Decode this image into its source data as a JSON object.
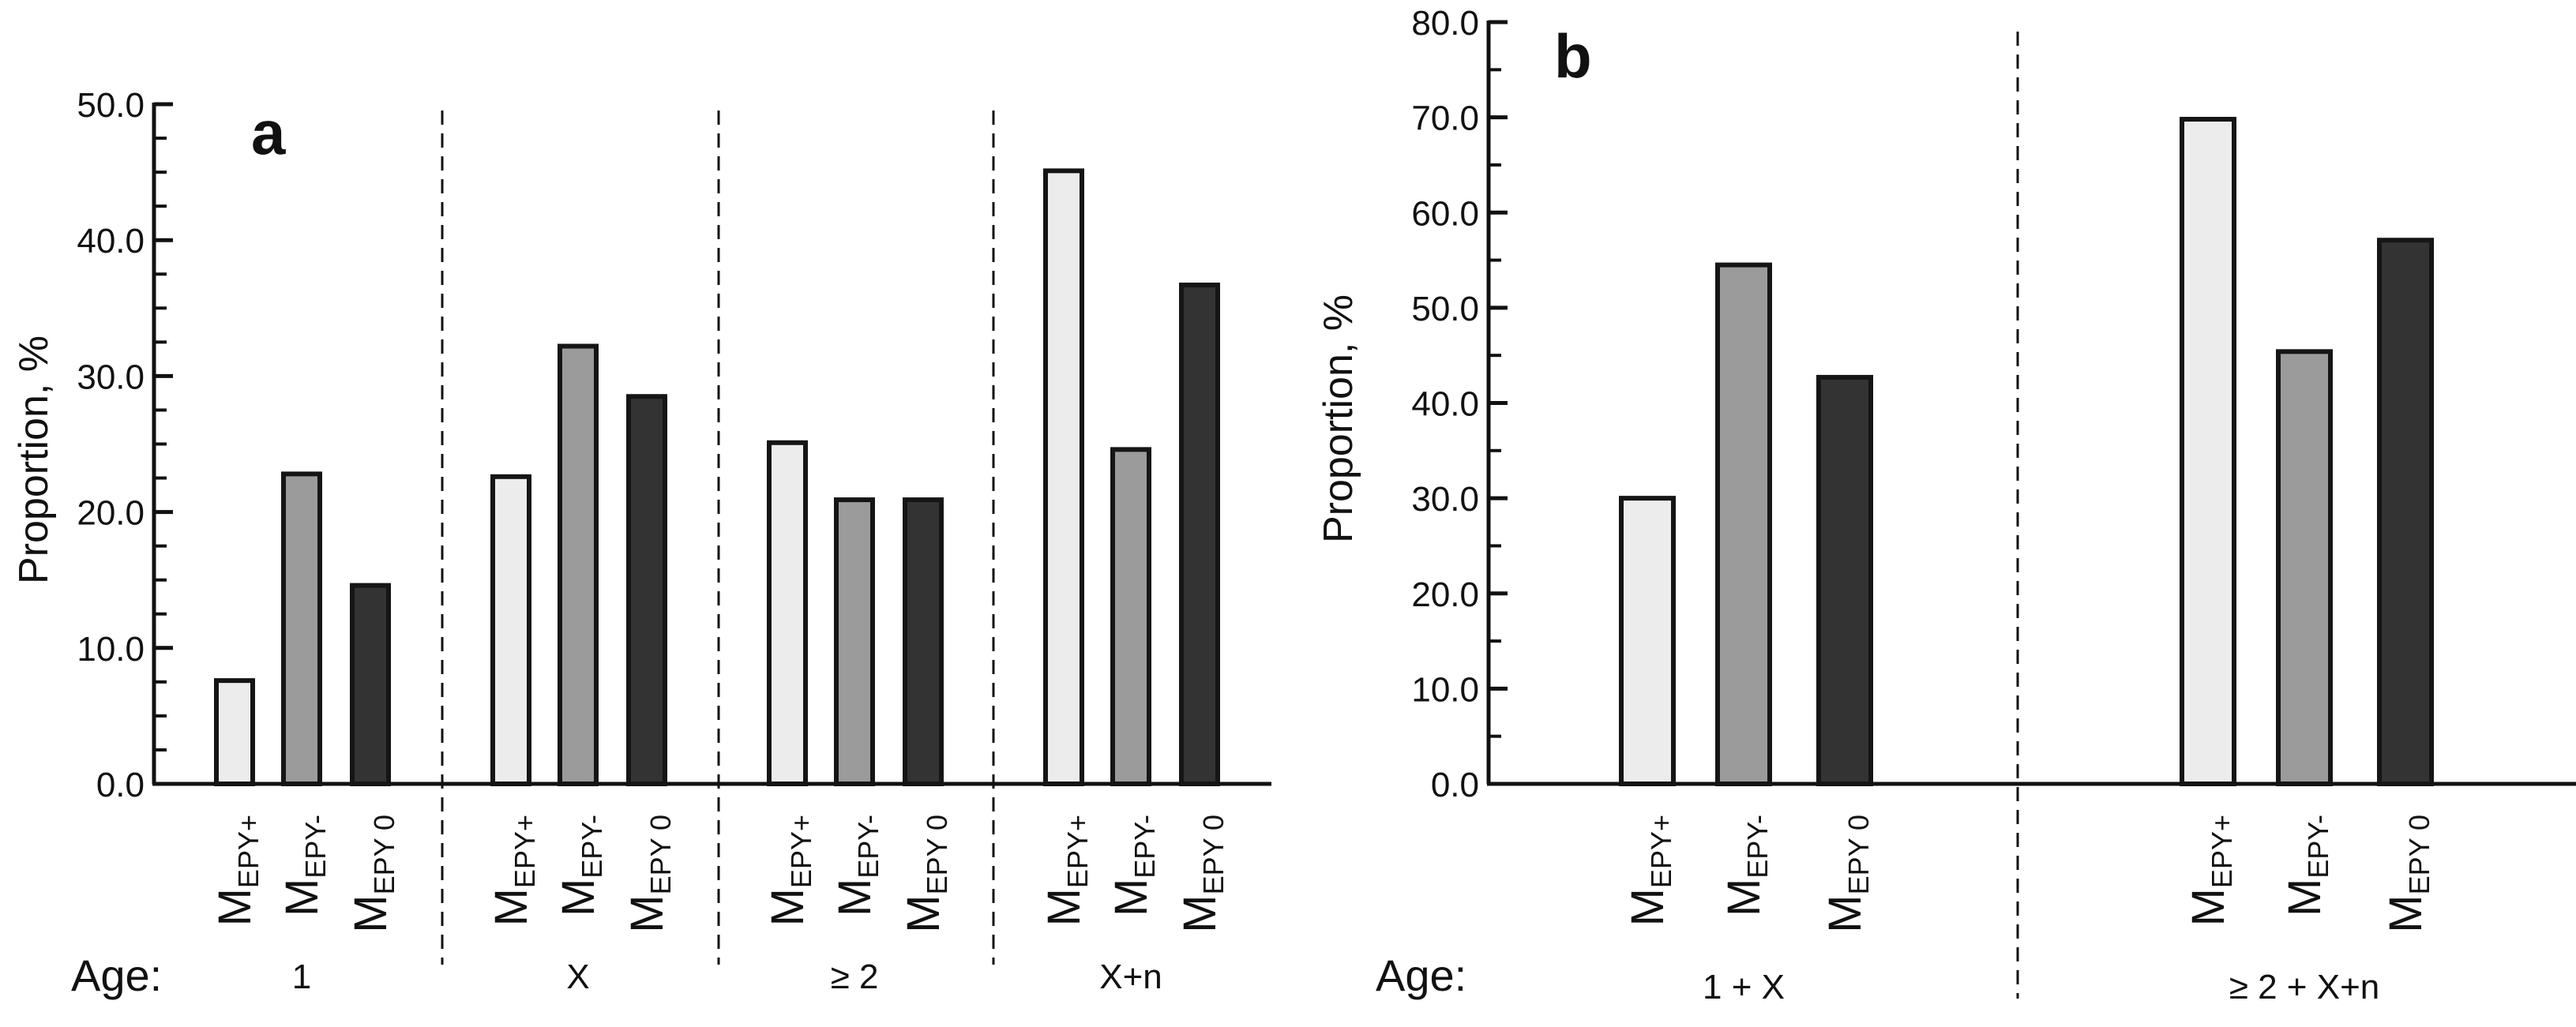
{
  "chart_data": [
    {
      "type": "bar",
      "panel_label": "a",
      "ylabel": "Proportion, %",
      "ylim": [
        0,
        50
      ],
      "yticks": [
        "0.0",
        "10.0",
        "20.0",
        "30.0",
        "40.0",
        "50.0"
      ],
      "age_label": "Age:",
      "bar_label_main": "M",
      "category_subscripts": [
        "EPY+",
        "EPY-",
        "EPY 0"
      ],
      "bar_colors": [
        "#ececec",
        "#9b9b9b",
        "#333333"
      ],
      "groups": [
        {
          "label": "1",
          "values": [
            7.6,
            22.8,
            14.6
          ]
        },
        {
          "label": "X",
          "values": [
            22.6,
            32.2,
            28.5
          ]
        },
        {
          "label": "≥ 2",
          "values": [
            25.1,
            20.9,
            20.9
          ]
        },
        {
          "label": "X+n",
          "values": [
            45.1,
            24.6,
            36.7
          ]
        }
      ]
    },
    {
      "type": "bar",
      "panel_label": "b",
      "ylabel": "Proportion, %",
      "ylim": [
        0,
        80
      ],
      "yticks": [
        "0.0",
        "10.0",
        "20.0",
        "30.0",
        "40.0",
        "50.0",
        "60.0",
        "70.0",
        "80.0"
      ],
      "age_label": "Age:",
      "bar_label_main": "M",
      "category_subscripts": [
        "EPY+",
        "EPY-",
        "EPY 0"
      ],
      "bar_colors": [
        "#ececec",
        "#9b9b9b",
        "#333333"
      ],
      "groups": [
        {
          "label": "1 + X",
          "values": [
            30.0,
            54.5,
            42.7
          ]
        },
        {
          "label": "≥ 2 + X+n",
          "values": [
            69.8,
            45.4,
            57.1
          ]
        }
      ]
    }
  ]
}
